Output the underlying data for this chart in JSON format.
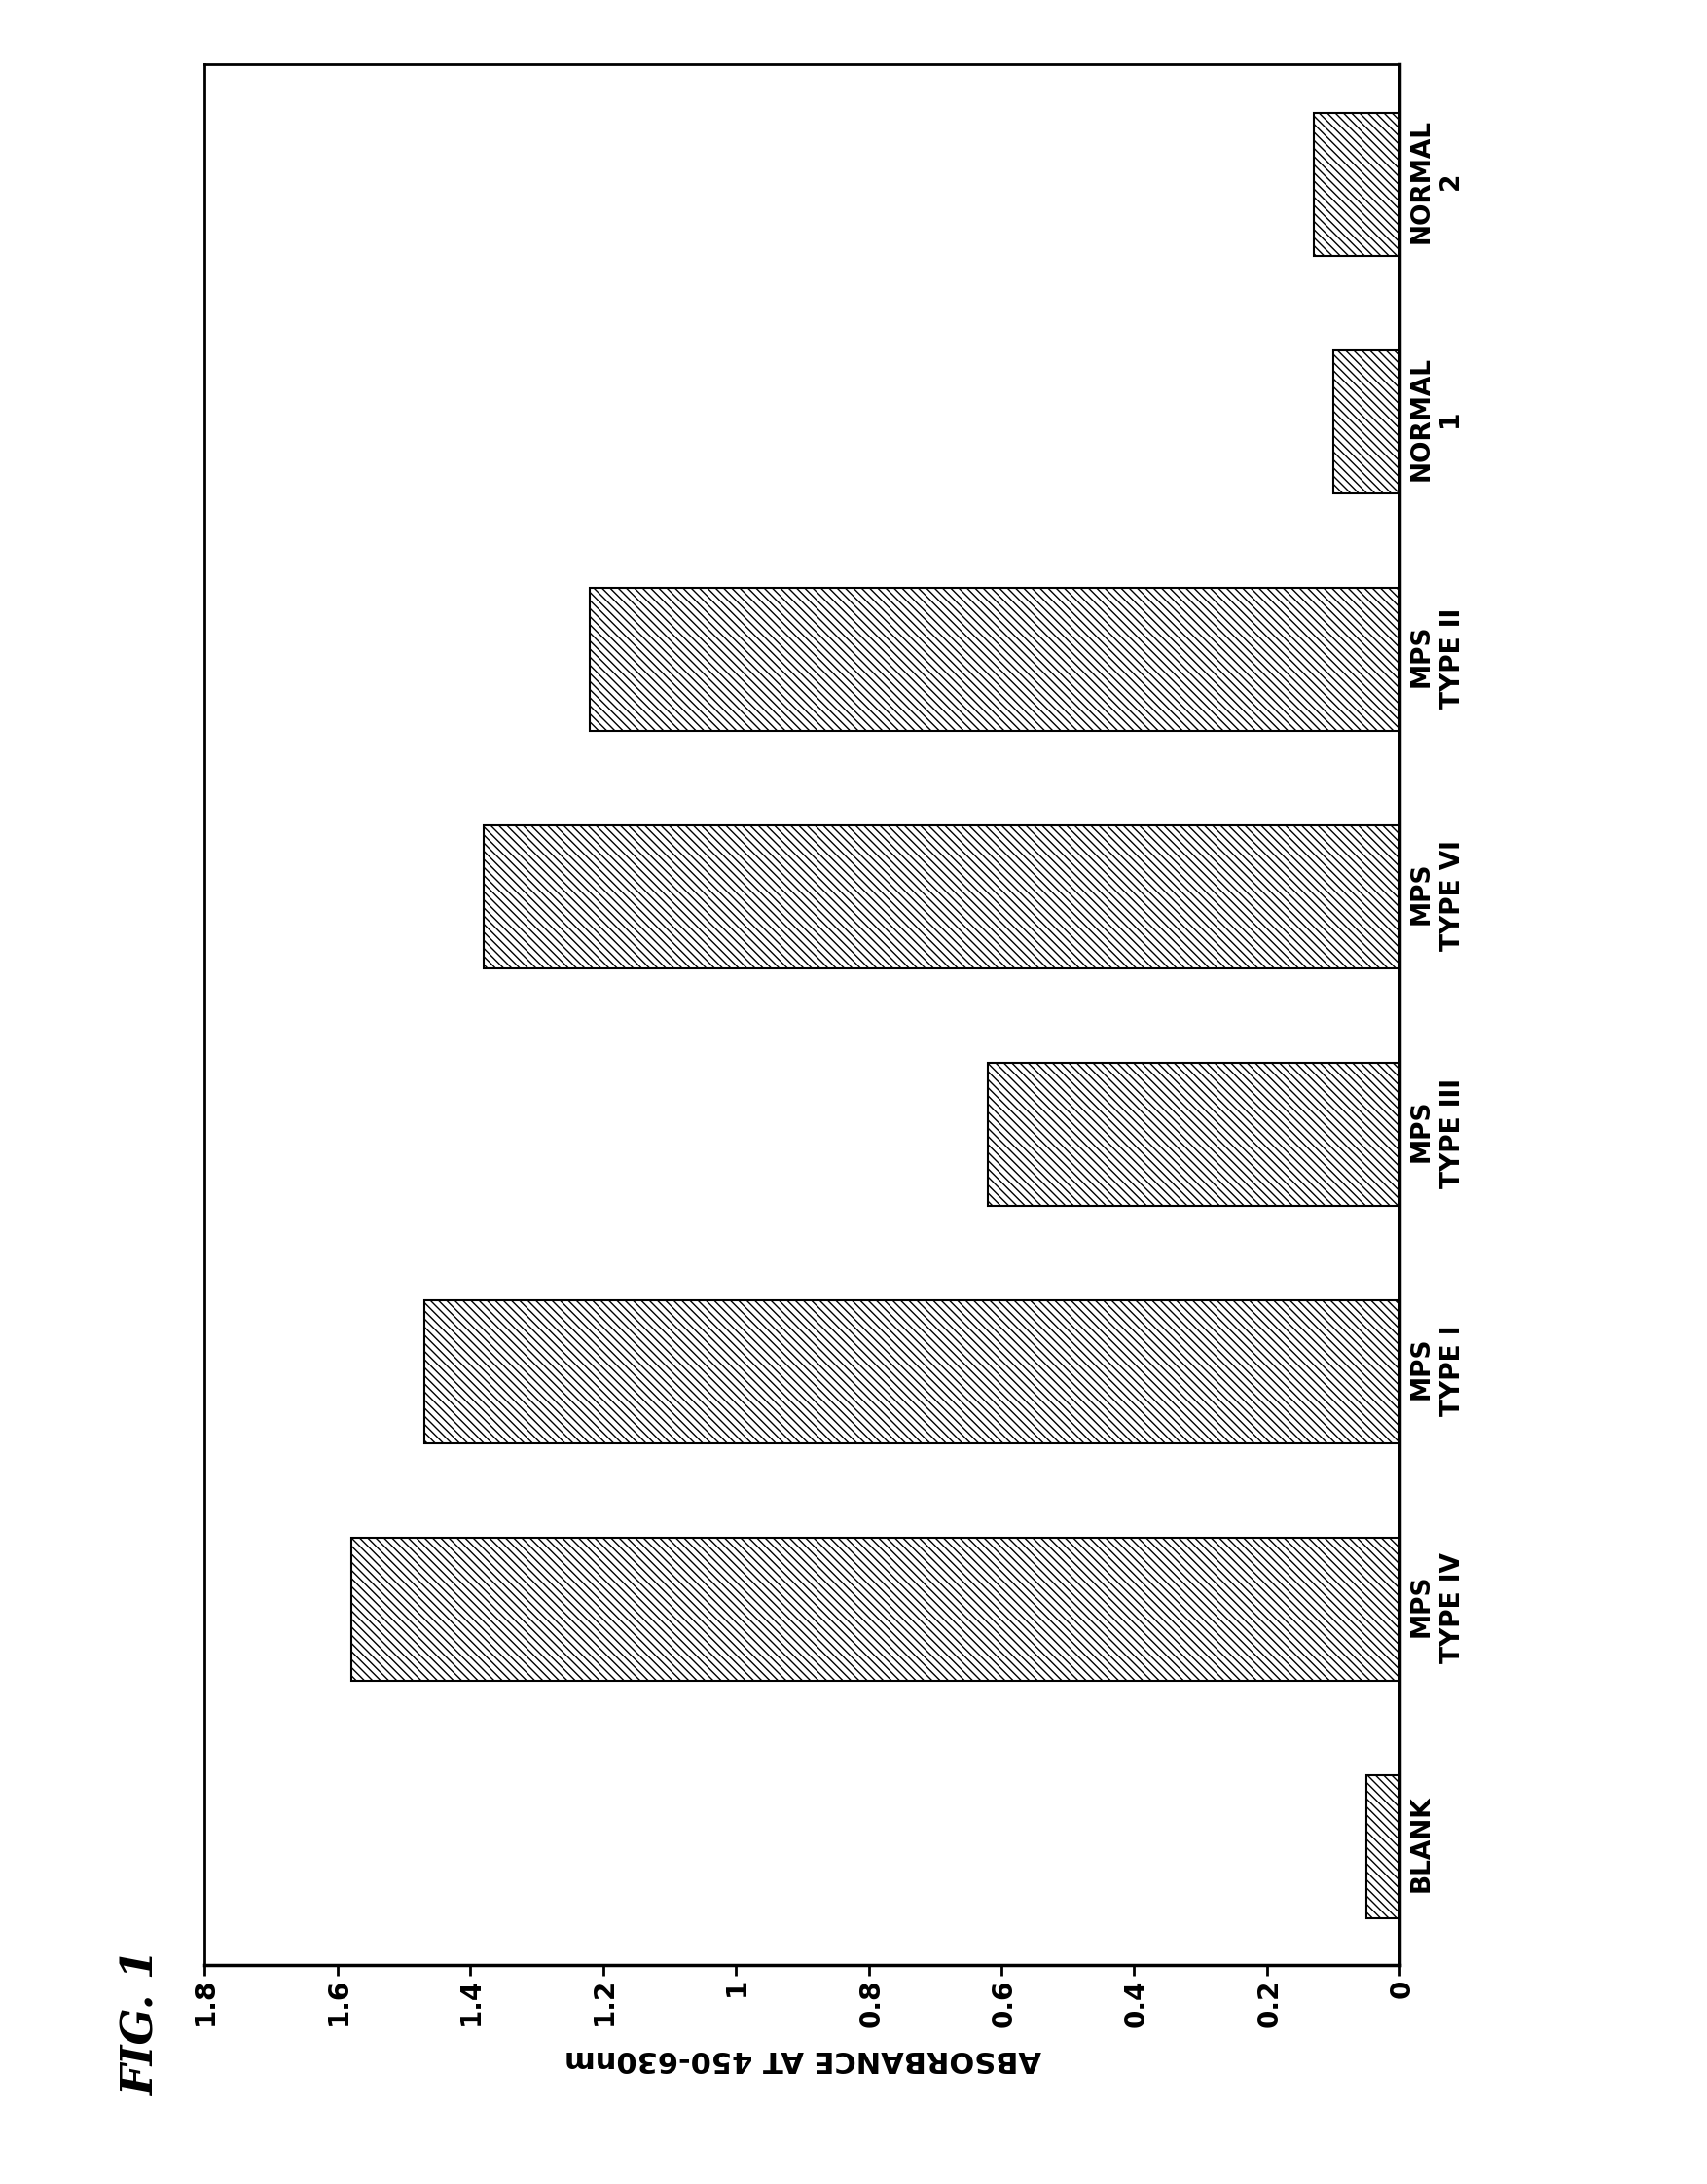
{
  "title": "FIG. 1",
  "categories": [
    "BLANK",
    "MPS\nTYPE IV",
    "MPS\nTYPE I",
    "MPS\nTYPE III",
    "MPS\nTYPE VI",
    "MPS\nTYPE II",
    "NORMAL\n1",
    "NORMAL\n2"
  ],
  "values": [
    0.05,
    1.58,
    1.47,
    0.62,
    1.38,
    1.22,
    0.1,
    0.13
  ],
  "ylabel": "ABSORBANCE AT 450-630nm",
  "ylim": [
    0,
    1.8
  ],
  "yticks": [
    0,
    0.2,
    0.4,
    0.6,
    0.8,
    1.0,
    1.2,
    1.4,
    1.6,
    1.8
  ],
  "ytick_labels": [
    "0",
    "0.2",
    "0.4",
    "0.6",
    "0.8",
    "1",
    "1.2",
    "1.4",
    "1.6",
    "1.8"
  ],
  "hatch": "////",
  "bar_color": "white",
  "bar_edgecolor": "black",
  "background_color": "white",
  "title_fontsize": 32,
  "label_fontsize": 22,
  "tick_fontsize": 20,
  "cat_fontsize": 19
}
